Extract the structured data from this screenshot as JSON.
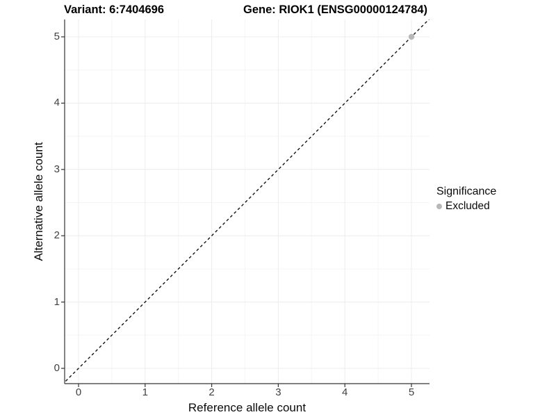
{
  "chart_data": {
    "type": "scatter",
    "titles": {
      "variant": "Variant: 6:7404696",
      "gene": "Gene: RIOK1 (ENSG00000124784)"
    },
    "xlabel": "Reference allele count",
    "ylabel": "Alternative allele count",
    "xticks": [
      0,
      1,
      2,
      3,
      4,
      5
    ],
    "yticks": [
      0,
      1,
      2,
      3,
      4,
      5
    ],
    "xlim": [
      -0.22,
      5.28
    ],
    "ylim": [
      -0.23,
      5.26
    ],
    "grid": {
      "major": true,
      "minor": true
    },
    "identity_line": {
      "style": "dashed",
      "color": "#111111",
      "from": [
        -0.25,
        -0.25
      ],
      "to": [
        5.3,
        5.3
      ]
    },
    "series": [
      {
        "name": "Excluded",
        "color": "#b8b8b8",
        "points": [
          [
            5,
            5
          ]
        ]
      }
    ],
    "legend": {
      "title": "Significance",
      "position": "right",
      "items": [
        {
          "label": "Excluded",
          "color": "#b8b8b8"
        }
      ]
    }
  },
  "colors": {
    "grid_major": "#ececec",
    "grid_minor": "#f5f5f5",
    "axis_line": "#333333",
    "tick_mark": "#333333",
    "tick_label": "#404040"
  }
}
